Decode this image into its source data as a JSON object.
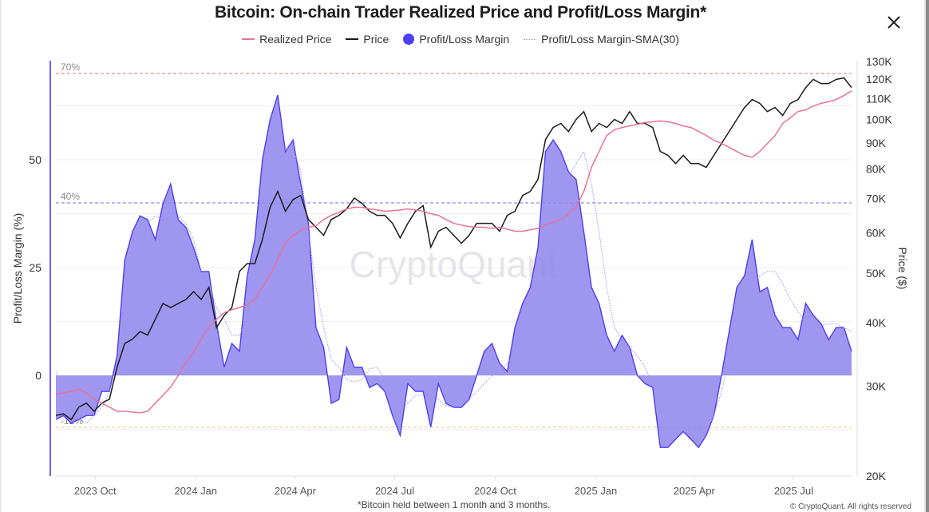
{
  "window": {
    "close_icon": "close-icon"
  },
  "chart_data": {
    "type": "area",
    "title": "Bitcoin: On-chain Trader Realized Price and Profit/Loss Margin*",
    "footnote": "*Bitcoin held between 1 month and 3 months.",
    "copyright": "© CryptoQuant. All rights reserved",
    "watermark": "CryptoQuant",
    "legend_position": "top-center",
    "legend": [
      {
        "name": "Realized Price",
        "marker": "line",
        "color": "#e8719a"
      },
      {
        "name": "Price",
        "marker": "line",
        "color": "#1a1a1a"
      },
      {
        "name": "Profit/Loss Margin",
        "marker": "dot",
        "color": "#4b3ff0"
      },
      {
        "name": "Profit/Loss Margin-SMA(30)",
        "marker": "dotted",
        "color": "#9a93f5"
      }
    ],
    "x": {
      "start": "2023-08-26",
      "interval_days": 7,
      "range": [
        "2023-08-26",
        "2025-08-23"
      ],
      "tick_labels": [
        "2023 Oct",
        "2024 Jan",
        "2024 Apr",
        "2024 Jul",
        "2024 Oct",
        "2025 Jan",
        "2025 Apr",
        "2025 Jul"
      ],
      "tick_dates": [
        "2023-10-01",
        "2024-01-01",
        "2024-04-01",
        "2024-07-01",
        "2024-10-01",
        "2025-01-01",
        "2025-04-01",
        "2025-07-01"
      ]
    },
    "y_left": {
      "label": "Profit/Loss Margin (%)",
      "range": [
        -23,
        72
      ],
      "ticks": [
        0,
        25,
        50
      ],
      "grid": true
    },
    "y_right": {
      "label": "Price ($)",
      "scale": "log",
      "range": [
        20000,
        130000
      ],
      "ticks": [
        20000,
        30000,
        40000,
        50000,
        60000,
        70000,
        80000,
        90000,
        100000,
        110000,
        120000,
        130000
      ],
      "tick_labels": [
        "20K",
        "30K",
        "40K",
        "50K",
        "60K",
        "70K",
        "80K",
        "90K",
        "100K",
        "110K",
        "120K",
        "130K"
      ]
    },
    "reference_lines": [
      {
        "value": 70,
        "label": "70%",
        "color": "#f08a8a"
      },
      {
        "value": 40,
        "label": "40%",
        "color": "#8f86f2"
      },
      {
        "value": -12,
        "label": "-12%",
        "color": "#f3c98a"
      }
    ],
    "series": [
      {
        "name": "Profit/Loss Margin",
        "axis": "left",
        "unit": "%",
        "color": "#4b3ff0",
        "fill": "#8e84ec",
        "values": [
          -10.2,
          -9.3,
          -11.1,
          -10.2,
          -9.3,
          -9.3,
          -3.7,
          -3.7,
          4.6,
          26.7,
          33.3,
          37.0,
          36.1,
          31.5,
          39.8,
          44.4,
          36.1,
          34.3,
          29.6,
          24.1,
          24.1,
          12.0,
          1.9,
          7.4,
          5.6,
          23.1,
          31.5,
          50.0,
          59.3,
          65.0,
          51.9,
          54.6,
          44.4,
          35.2,
          11.1,
          6.5,
          -6.5,
          -5.6,
          6.5,
          1.9,
          1.9,
          -2.8,
          -1.9,
          -3.7,
          -9.3,
          -13.9,
          -1.9,
          -3.7,
          -3.7,
          -12.0,
          -1.9,
          -6.5,
          -7.4,
          -7.4,
          -5.6,
          0.0,
          5.6,
          7.4,
          2.8,
          0.9,
          11.1,
          16.7,
          20.4,
          29.6,
          51.9,
          54.6,
          51.9,
          47.2,
          45.4,
          33.3,
          20.4,
          16.7,
          9.3,
          5.6,
          9.3,
          6.5,
          0.0,
          -1.9,
          -2.8,
          -16.7,
          -16.7,
          -14.8,
          -13.0,
          -14.8,
          -16.7,
          -13.9,
          -9.3,
          0.0,
          10.2,
          20.4,
          23.1,
          31.5,
          19.4,
          20.4,
          13.9,
          11.1,
          11.1,
          8.3,
          16.7,
          13.9,
          12.0,
          8.3,
          11.1,
          11.1,
          5.6
        ]
      },
      {
        "name": "Profit/Loss Margin-SMA(30)",
        "axis": "left",
        "unit": "%",
        "color": "#9a93f5",
        "values": [
          0.9,
          -3.7,
          -7.4,
          -10.2,
          -11.1,
          -9.3,
          -7.4,
          -3.7,
          2.8,
          10.2,
          17.6,
          28.7,
          35.2,
          37.0,
          36.1,
          36.5,
          37.0,
          35.2,
          31.5,
          24.1,
          21.3,
          15.7,
          13.0,
          9.3,
          9.3,
          13.0,
          24.1,
          35.2,
          44.4,
          49.6,
          52.4,
          52.8,
          47.2,
          33.3,
          20.4,
          11.1,
          3.7,
          1.9,
          -0.9,
          -1.5,
          -0.9,
          1.5,
          1.9,
          -0.9,
          -4.6,
          -7.4,
          -6.5,
          -4.6,
          -4.6,
          -4.6,
          -5.6,
          -7.0,
          -7.4,
          -6.5,
          -5.6,
          -3.7,
          -1.9,
          0.0,
          0.9,
          2.8,
          5.6,
          8.3,
          11.1,
          16.7,
          24.1,
          33.3,
          40.7,
          46.3,
          49.1,
          51.9,
          44.4,
          33.3,
          20.4,
          11.1,
          8.3,
          6.5,
          4.6,
          1.9,
          -1.9,
          -5.6,
          -8.3,
          -11.1,
          -12.9,
          -13.9,
          -13.9,
          -12.9,
          -9.3,
          -3.7,
          3.7,
          11.1,
          16.7,
          21.3,
          23.1,
          24.1,
          24.1,
          21.3,
          17.6,
          14.8,
          12.0,
          11.5,
          11.5,
          12.0,
          12.0,
          11.1,
          10.2
        ]
      },
      {
        "name": "Price",
        "axis": "right",
        "unit": "USD thousands",
        "color": "#1a1a1a",
        "values": [
          26.3,
          26.5,
          25.8,
          27.3,
          27.8,
          26.8,
          27.8,
          28.3,
          32.7,
          36.4,
          37.1,
          38.4,
          37.8,
          40.6,
          43.6,
          42.8,
          43.6,
          44.4,
          46.0,
          44.4,
          46.9,
          39.1,
          41.3,
          42.8,
          50.4,
          52.2,
          52.2,
          58.2,
          67.3,
          72.3,
          66.1,
          69.7,
          71.0,
          63.7,
          61.5,
          59.3,
          63.7,
          64.9,
          66.8,
          70.2,
          68.5,
          66.1,
          64.9,
          64.9,
          62.6,
          58.6,
          62.6,
          66.1,
          67.8,
          56.2,
          60.4,
          61.5,
          59.3,
          57.2,
          59.3,
          62.6,
          62.6,
          62.6,
          60.4,
          64.9,
          66.1,
          71.0,
          72.3,
          76.3,
          91.4,
          96.5,
          98.3,
          94.8,
          100.1,
          103.7,
          94.8,
          98.3,
          96.5,
          100.1,
          98.3,
          103.7,
          98.3,
          98.3,
          96.5,
          86.6,
          85.1,
          82.0,
          85.1,
          82.0,
          82.0,
          80.6,
          85.1,
          89.8,
          94.8,
          100.1,
          105.6,
          109.5,
          107.6,
          103.7,
          105.6,
          101.9,
          107.6,
          109.5,
          115.6,
          119.9,
          117.7,
          117.7,
          119.9,
          120.7,
          115.6
        ]
      },
      {
        "name": "Realized Price",
        "axis": "right",
        "unit": "USD thousands",
        "color": "#e8719a",
        "values": [
          29.0,
          29.1,
          29.3,
          29.6,
          29.1,
          28.3,
          27.8,
          27.3,
          26.8,
          26.8,
          26.7,
          26.6,
          26.8,
          27.8,
          28.8,
          29.9,
          31.5,
          33.3,
          35.1,
          37.1,
          39.1,
          40.6,
          41.8,
          42.4,
          42.8,
          43.3,
          44.4,
          46.9,
          49.5,
          53.2,
          57.2,
          59.3,
          60.8,
          61.5,
          61.9,
          63.7,
          64.9,
          65.8,
          66.8,
          67.3,
          67.3,
          66.8,
          66.5,
          66.1,
          66.3,
          66.5,
          66.8,
          66.5,
          66.1,
          65.4,
          64.9,
          63.7,
          62.6,
          62.1,
          61.7,
          61.5,
          61.5,
          61.2,
          61.5,
          61.0,
          60.4,
          60.4,
          60.8,
          61.2,
          62.1,
          63.0,
          63.7,
          65.4,
          67.3,
          72.3,
          80.6,
          86.6,
          93.1,
          95.5,
          96.5,
          97.2,
          97.9,
          98.7,
          99.0,
          99.4,
          99.0,
          98.3,
          97.2,
          96.5,
          94.8,
          93.1,
          91.1,
          89.8,
          88.2,
          86.6,
          85.1,
          84.4,
          86.6,
          89.8,
          93.1,
          98.3,
          100.8,
          103.7,
          104.5,
          106.3,
          107.6,
          108.4,
          109.5,
          111.5,
          113.9
        ]
      }
    ]
  }
}
